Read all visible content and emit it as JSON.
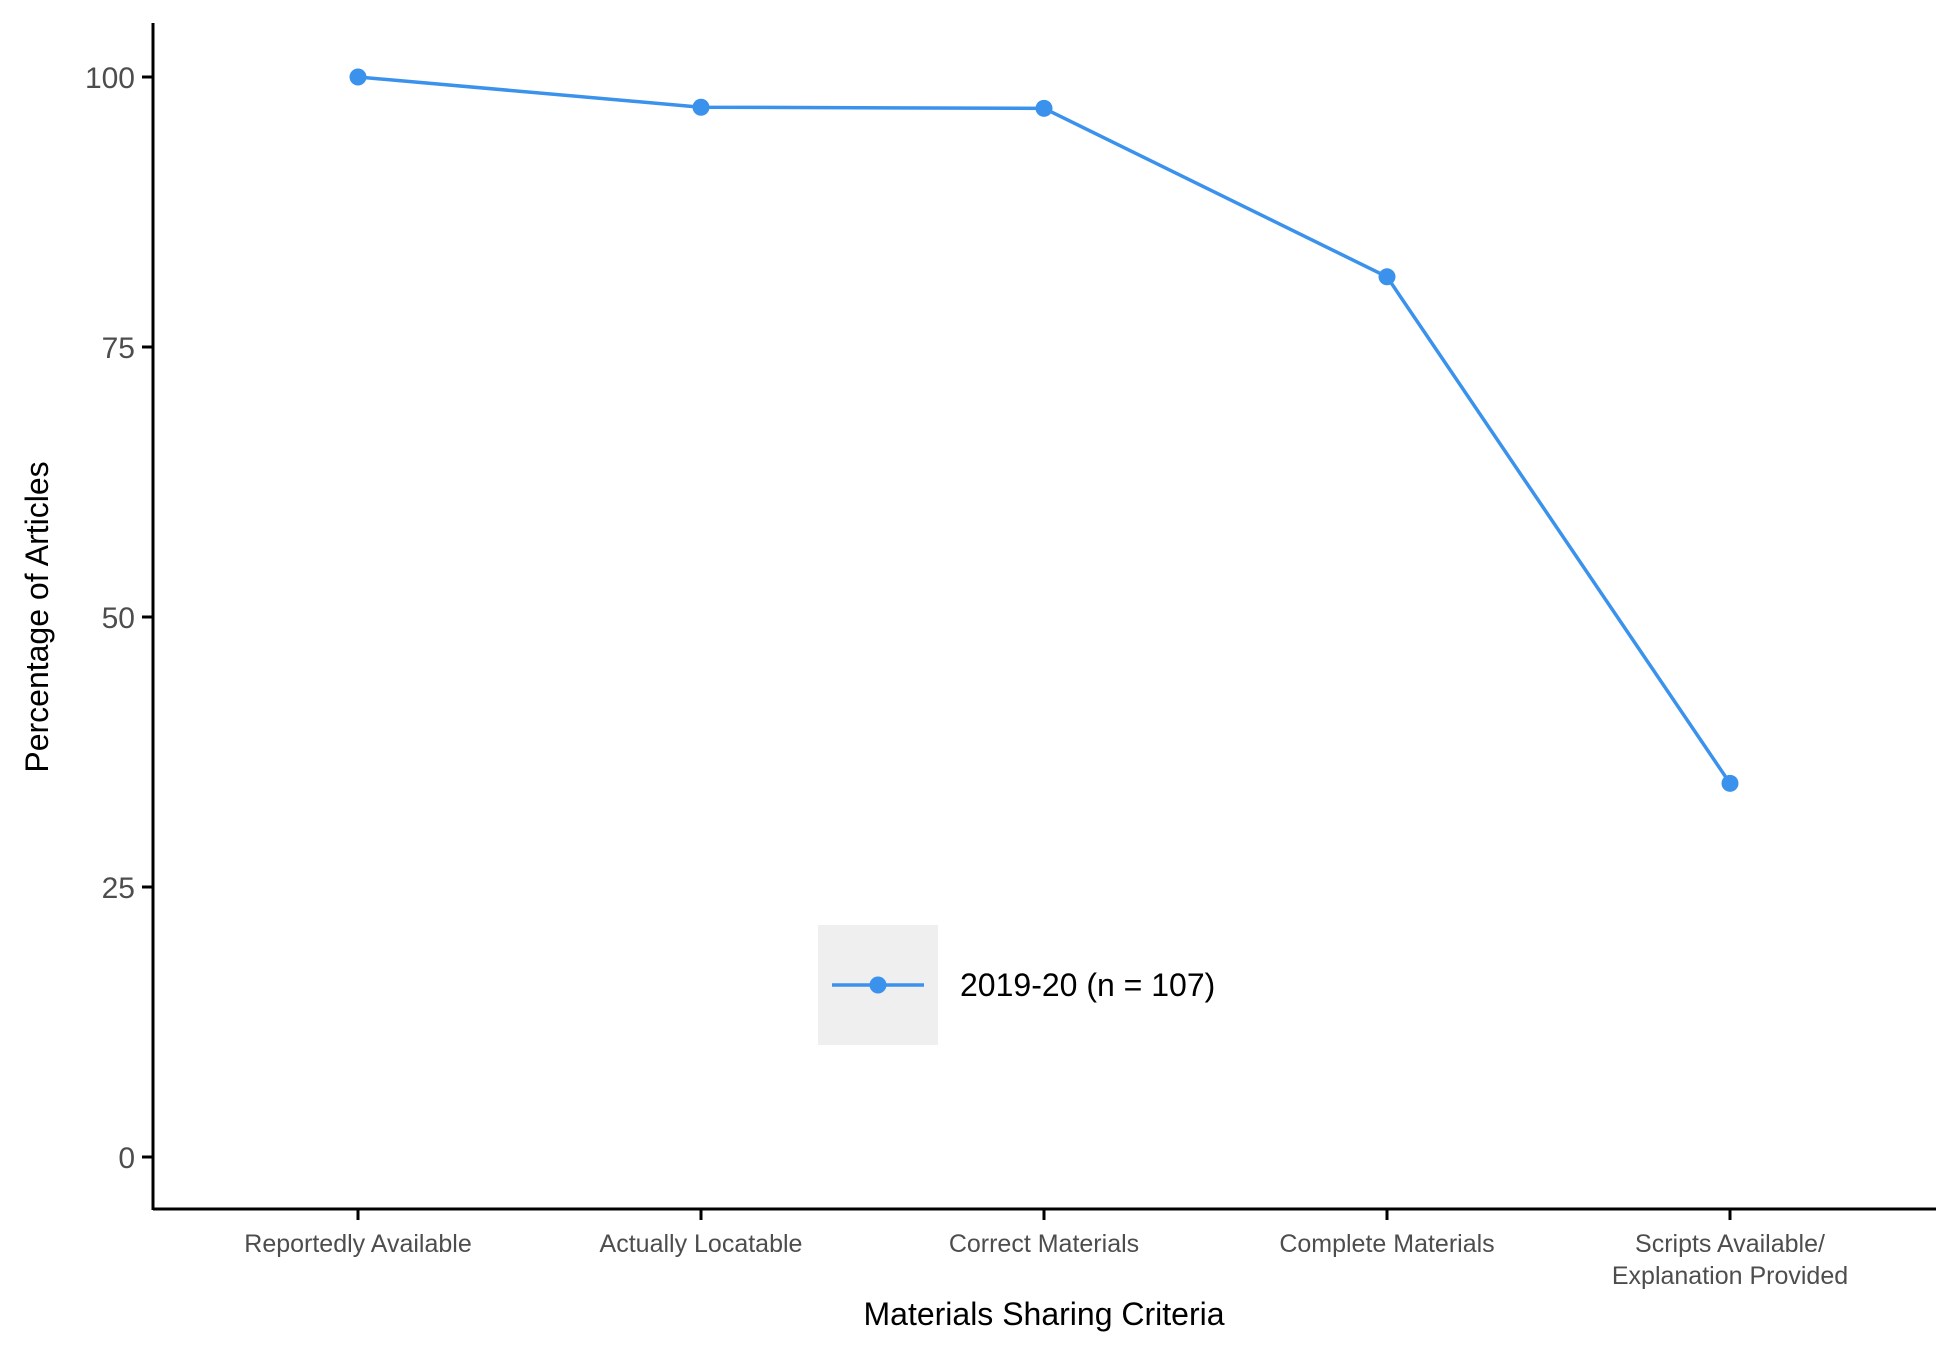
{
  "chart_data": {
    "type": "line",
    "xlabel": "Materials Sharing Criteria",
    "ylabel": "Percentage of Articles",
    "categories": [
      [
        "Reportedly Available"
      ],
      [
        "Actually Locatable"
      ],
      [
        "Correct Materials"
      ],
      [
        "Complete Materials"
      ],
      [
        "Scripts Available/",
        "Explanation Provided"
      ]
    ],
    "series": [
      {
        "name": "2019-20 (n = 107)",
        "values": [
          100,
          97.2,
          97.1,
          81.5,
          34.6
        ],
        "color": "#3a92ec"
      }
    ],
    "ylim": [
      0,
      100
    ],
    "yticks": [
      0,
      25,
      50,
      75,
      100
    ],
    "grid": false,
    "legend_position": "inside-bottom-center",
    "legend_key_background": "#efefef"
  }
}
